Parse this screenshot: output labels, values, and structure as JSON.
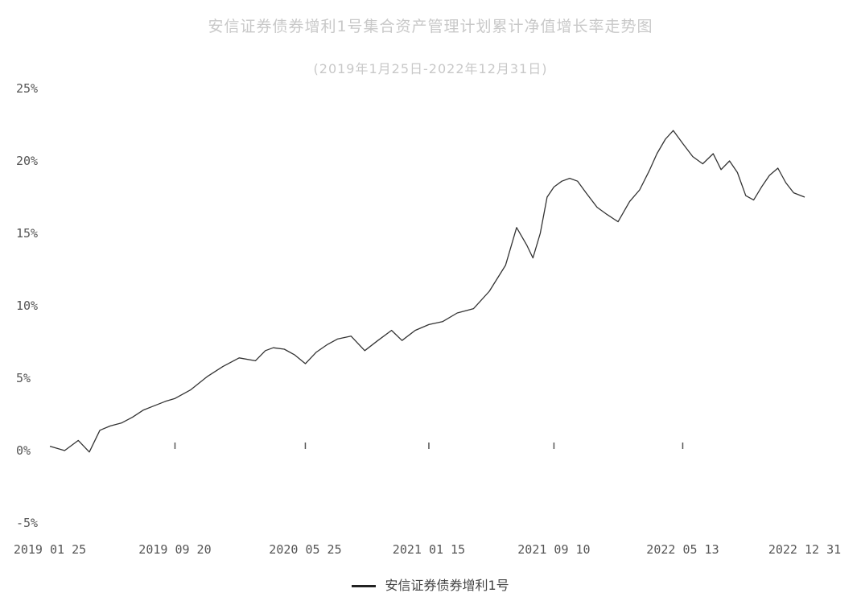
{
  "chart_data": {
    "type": "line",
    "title": "安信证券债券增利1号集合资产管理计划累计净值增长率走势图",
    "subtitle": "(2019年1月25日-2022年12月31日)",
    "xlabel": "",
    "ylabel": "",
    "x_tick_labels": [
      "2019-01-25",
      "2019-09-20",
      "2020-05-25",
      "2021-01-15",
      "2021-09-10",
      "2022-05-13",
      "2022-12-31"
    ],
    "y_tick_labels": [
      "-5%",
      "0%",
      "5%",
      "10%",
      "15%",
      "20%",
      "25%"
    ],
    "ylim": [
      -5,
      25
    ],
    "grid": false,
    "legend_position": "bottom",
    "series": [
      {
        "name": "安信证券债券增利1号",
        "color": "#333333",
        "x": [
          "2019-01-25",
          "2019-02-22",
          "2019-03-20",
          "2019-04-10",
          "2019-04-30",
          "2019-05-20",
          "2019-06-10",
          "2019-07-01",
          "2019-07-22",
          "2019-08-12",
          "2019-09-02",
          "2019-09-20",
          "2019-10-20",
          "2019-11-20",
          "2019-12-20",
          "2020-01-20",
          "2020-02-20",
          "2020-03-10",
          "2020-03-25",
          "2020-04-15",
          "2020-05-05",
          "2020-05-25",
          "2020-06-15",
          "2020-07-05",
          "2020-07-25",
          "2020-08-20",
          "2020-09-15",
          "2020-10-10",
          "2020-11-05",
          "2020-11-25",
          "2020-12-20",
          "2021-01-15",
          "2021-02-10",
          "2021-03-10",
          "2021-04-10",
          "2021-05-10",
          "2021-06-10",
          "2021-07-01",
          "2021-07-20",
          "2021-08-01",
          "2021-08-15",
          "2021-08-28",
          "2021-09-10",
          "2021-09-25",
          "2021-10-10",
          "2021-10-25",
          "2021-11-10",
          "2021-12-01",
          "2021-12-20",
          "2022-01-10",
          "2022-02-01",
          "2022-02-20",
          "2022-03-10",
          "2022-03-25",
          "2022-04-10",
          "2022-04-25",
          "2022-05-13",
          "2022-06-01",
          "2022-06-20",
          "2022-07-10",
          "2022-07-25",
          "2022-08-10",
          "2022-08-25",
          "2022-09-10",
          "2022-09-25",
          "2022-10-10",
          "2022-10-25",
          "2022-11-10",
          "2022-11-25",
          "2022-12-10",
          "2022-12-31"
        ],
        "values": [
          0.3,
          0.0,
          0.7,
          -0.1,
          1.4,
          1.7,
          1.9,
          2.3,
          2.8,
          3.1,
          3.4,
          3.6,
          4.2,
          5.1,
          5.8,
          6.4,
          6.2,
          6.9,
          7.1,
          7.0,
          6.6,
          6.0,
          6.8,
          7.3,
          7.7,
          7.9,
          6.9,
          7.6,
          8.3,
          7.6,
          8.3,
          8.7,
          8.9,
          9.5,
          9.8,
          11.0,
          12.8,
          15.4,
          14.2,
          13.3,
          15.0,
          17.5,
          18.2,
          18.6,
          18.8,
          18.6,
          17.8,
          16.8,
          16.3,
          15.8,
          17.2,
          18.0,
          19.3,
          20.5,
          21.5,
          22.1,
          21.2,
          20.3,
          19.8,
          20.5,
          19.4,
          20.0,
          19.2,
          17.6,
          17.3,
          18.2,
          19.0,
          19.5,
          18.5,
          17.8,
          17.5
        ]
      }
    ]
  }
}
